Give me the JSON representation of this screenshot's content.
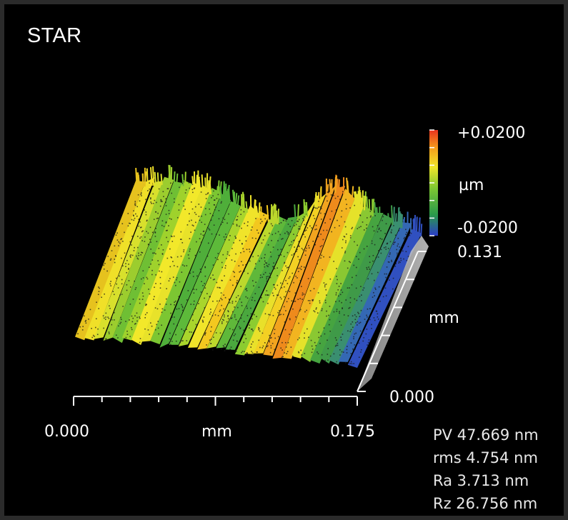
{
  "title": "STAR",
  "chart_data": {
    "type": "surface",
    "x_axis": {
      "label": "mm",
      "min_label": "0.000",
      "max_label": "0.175",
      "range": [
        0.0,
        0.175
      ]
    },
    "y_axis": {
      "label": "mm",
      "min_label": "0.000",
      "max_label": "0.131",
      "range": [
        0.0,
        0.131
      ]
    },
    "colorbar": {
      "unit": "µm",
      "max_label": "+0.0200",
      "min_label": "-0.0200",
      "range": [
        -0.02,
        0.02
      ],
      "colors": [
        "#2b3cc8",
        "#2a9a4a",
        "#7ec832",
        "#f0e62a",
        "#f5a21c",
        "#e8321e"
      ]
    }
  },
  "stats": [
    {
      "label": "PV",
      "value": "47.669 nm"
    },
    {
      "label": "rms",
      "value": "4.754 nm"
    },
    {
      "label": "Ra",
      "value": "3.713 nm"
    },
    {
      "label": "Rz",
      "value": "26.756 nm"
    }
  ],
  "stats_text": [
    "PV 47.669 nm",
    "rms 4.754 nm",
    "Ra 3.713 nm",
    "Rz 26.756 nm"
  ]
}
